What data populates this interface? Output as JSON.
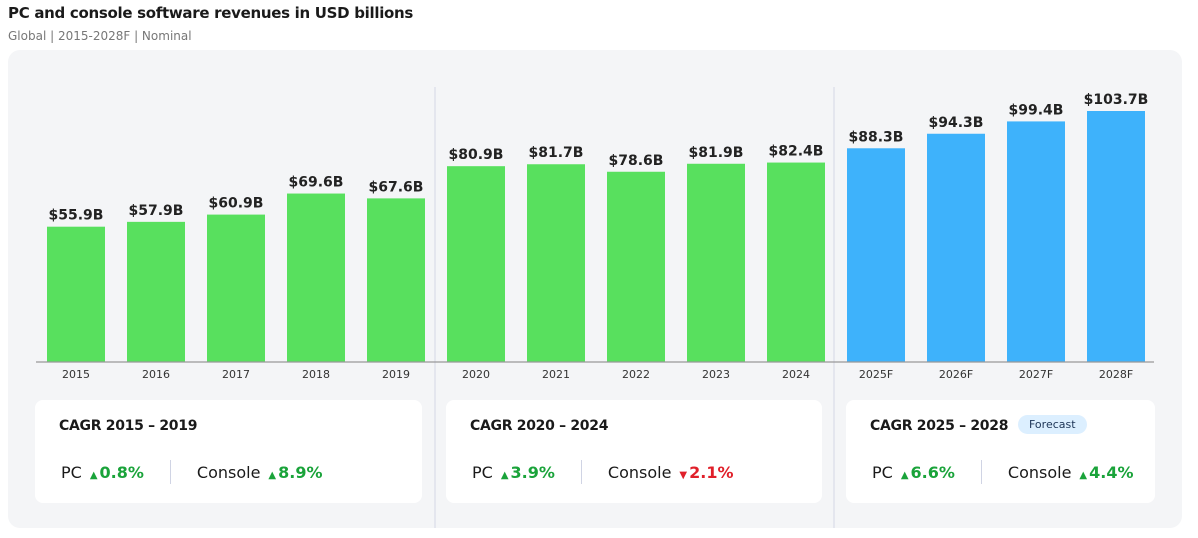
{
  "title": "PC and console software revenues in USD billions",
  "subtitle": "Global | 2015-2028F | Nominal",
  "colors": {
    "actual": "#58e05e",
    "forecast": "#3eb2fb",
    "up": "#1aa33a",
    "down": "#e0202a"
  },
  "chart_data": {
    "type": "bar",
    "title": "PC and console software revenues in USD billions",
    "categories": [
      "2015",
      "2016",
      "2017",
      "2018",
      "2019",
      "2020",
      "2021",
      "2022",
      "2023",
      "2024",
      "2025F",
      "2026F",
      "2027F",
      "2028F"
    ],
    "values": [
      55.9,
      57.9,
      60.9,
      69.6,
      67.6,
      80.9,
      81.7,
      78.6,
      81.9,
      82.4,
      88.3,
      94.3,
      99.4,
      103.7
    ],
    "labels": [
      "$55.9B",
      "$57.9B",
      "$60.9B",
      "$69.6B",
      "$67.6B",
      "$80.9B",
      "$81.7B",
      "$78.6B",
      "$81.9B",
      "$82.4B",
      "$88.3B",
      "$94.3B",
      "$99.4B",
      "$103.7B"
    ],
    "forecast": [
      false,
      false,
      false,
      false,
      false,
      false,
      false,
      false,
      false,
      false,
      true,
      true,
      true,
      true
    ],
    "ylim": [
      0,
      110
    ],
    "grid": false
  },
  "cards": [
    {
      "title": "CAGR 2015 – 2019",
      "pc_label": "PC",
      "pc": "0.8%",
      "pc_dir": "up",
      "console_label": "Console",
      "console": "8.9%",
      "console_dir": "up"
    },
    {
      "title": "CAGR 2020 – 2024",
      "pc_label": "PC",
      "pc": "3.9%",
      "pc_dir": "up",
      "console_label": "Console",
      "console": "2.1%",
      "console_dir": "down"
    },
    {
      "title": "CAGR 2025 – 2028",
      "badge": "Forecast",
      "pc_label": "PC",
      "pc": "6.6%",
      "pc_dir": "up",
      "console_label": "Console",
      "console": "4.4%",
      "console_dir": "up"
    }
  ]
}
